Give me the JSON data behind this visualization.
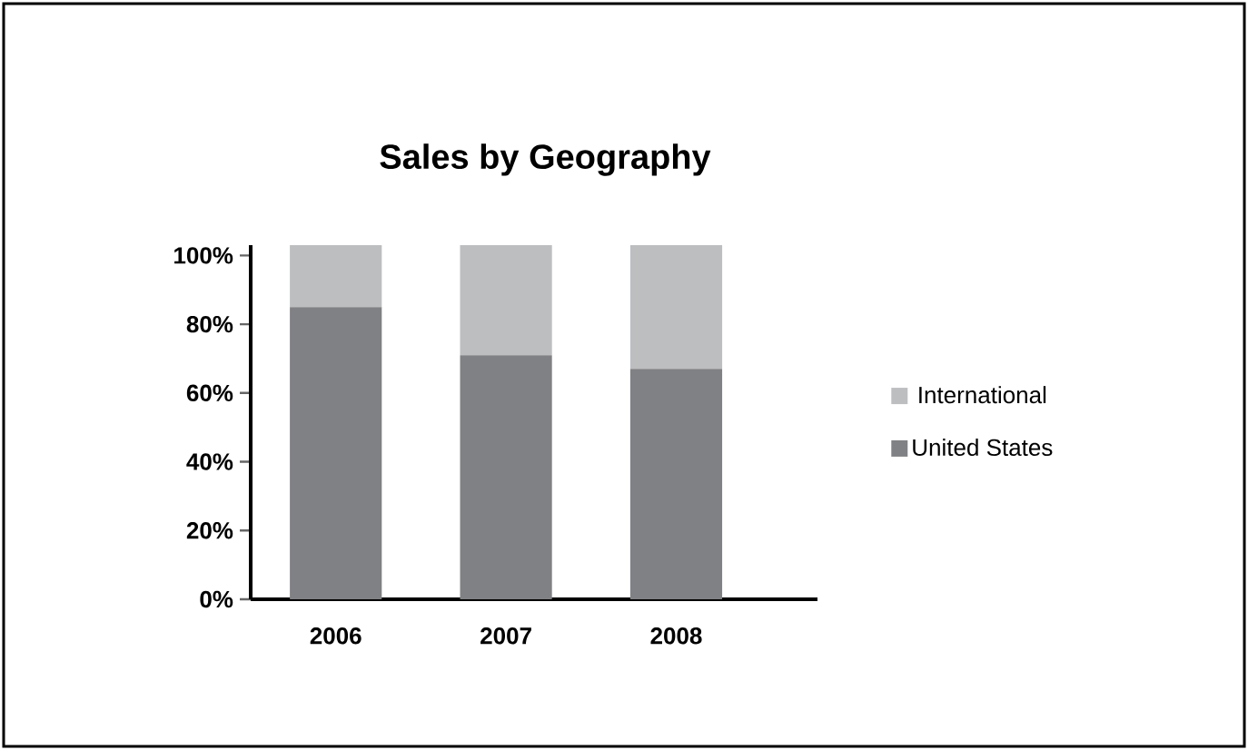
{
  "chart_data": {
    "type": "bar",
    "stacked": true,
    "title": "Sales by Geography",
    "categories": [
      "2006",
      "2007",
      "2008"
    ],
    "series": [
      {
        "name": "United States",
        "color": "#808184",
        "values": [
          85,
          71,
          67
        ]
      },
      {
        "name": "International",
        "color": "#bdbec0",
        "values": [
          18,
          32,
          36
        ]
      }
    ],
    "ylim": [
      0,
      103
    ],
    "yticks": [
      {
        "value": 0,
        "label": "0%"
      },
      {
        "value": 20,
        "label": "20%"
      },
      {
        "value": 40,
        "label": "40%"
      },
      {
        "value": 60,
        "label": "60%"
      },
      {
        "value": 80,
        "label": "80%"
      },
      {
        "value": 100,
        "label": "100%"
      }
    ],
    "legend": "right",
    "grid": false
  }
}
